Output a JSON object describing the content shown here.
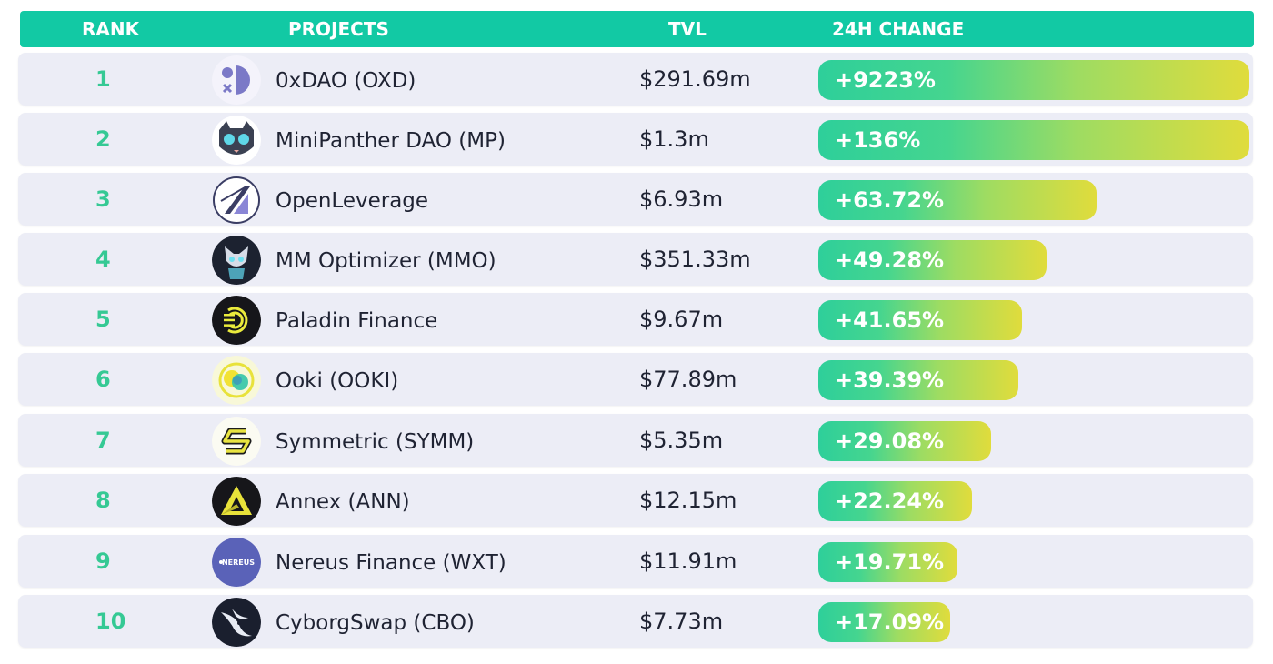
{
  "header": {
    "rank": "RANK",
    "projects": "PROJECTS",
    "tvl": "TVL",
    "change": "24H CHANGE"
  },
  "colors": {
    "header_bg": "#12c9a4",
    "row_bg": "#ecedf6",
    "rank_text": "#35c994",
    "bar_start": "#2ecf9a",
    "bar_end": "#e0dc3c"
  },
  "rows": [
    {
      "rank": "1",
      "name": "0xDAO (OXD)",
      "tvl": "$291.69m",
      "change": "+9223%",
      "fill": 1.0,
      "icon": "oxdao-logo-icon"
    },
    {
      "rank": "2",
      "name": "MiniPanther DAO (MP)",
      "tvl": "$1.3m",
      "change": "+136%",
      "fill": 1.0,
      "icon": "panther-logo-icon"
    },
    {
      "rank": "3",
      "name": "OpenLeverage",
      "tvl": "$6.93m",
      "change": "+63.72%",
      "fill": 0.645,
      "icon": "openleverage-logo-icon"
    },
    {
      "rank": "4",
      "name": "MM Optimizer (MMO)",
      "tvl": "$351.33m",
      "change": "+49.28%",
      "fill": 0.53,
      "icon": "mmo-logo-icon"
    },
    {
      "rank": "5",
      "name": "Paladin Finance",
      "tvl": "$9.67m",
      "change": "+41.65%",
      "fill": 0.472,
      "icon": "paladin-logo-icon"
    },
    {
      "rank": "6",
      "name": "Ooki (OOKI)",
      "tvl": "$77.89m",
      "change": "+39.39%",
      "fill": 0.465,
      "icon": "ooki-logo-icon"
    },
    {
      "rank": "7",
      "name": "Symmetric (SYMM)",
      "tvl": "$5.35m",
      "change": "+29.08%",
      "fill": 0.4,
      "icon": "symmetric-logo-icon"
    },
    {
      "rank": "8",
      "name": "Annex (ANN)",
      "tvl": "$12.15m",
      "change": "+22.24%",
      "fill": 0.357,
      "icon": "annex-logo-icon"
    },
    {
      "rank": "9",
      "name": "Nereus Finance (WXT)",
      "tvl": "$11.91m",
      "change": "+19.71%",
      "fill": 0.323,
      "icon": "nereus-logo-icon",
      "logo_text": "NEREUS"
    },
    {
      "rank": "10",
      "name": "CyborgSwap (CBO)",
      "tvl": "$7.73m",
      "change": "+17.09%",
      "fill": 0.306,
      "icon": "cyborgswap-logo-icon"
    }
  ]
}
